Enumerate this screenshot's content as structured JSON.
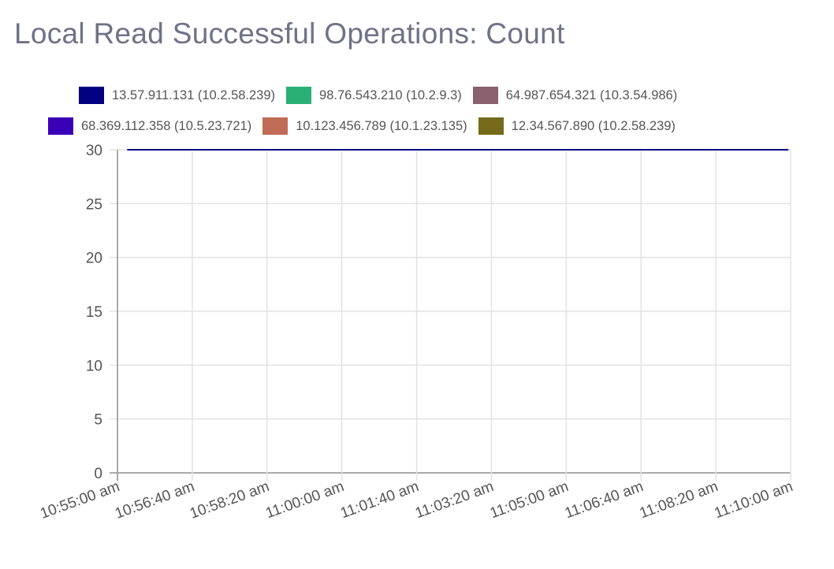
{
  "chart_data": {
    "type": "line",
    "title": "Local Read Successful Operations: Count",
    "xlabel": "",
    "ylabel": "",
    "ylim": [
      0,
      30
    ],
    "yticks": [
      "0",
      "5",
      "10",
      "15",
      "20",
      "25",
      "30"
    ],
    "xlim": [
      "10:55:00",
      "11:10:00"
    ],
    "xticks": [
      "10:55:00 am",
      "10:56:40 am",
      "10:58:20 am",
      "11:00:00 am",
      "11:01:40 am",
      "11:03:20 am",
      "11:05:00 am",
      "11:06:40 am",
      "11:08:20 am",
      "11:10:00 am"
    ],
    "grid": true,
    "legend_position": "top",
    "series": [
      {
        "name": "13.57.911.131 (10.2.58.239)",
        "color": "#000080",
        "points": [
          [
            "10:55:13",
            30
          ],
          [
            "11:09:57",
            30
          ]
        ]
      },
      {
        "name": "98.76.543.210 (10.2.9.3)",
        "color": "#2aaf74",
        "points": []
      },
      {
        "name": "64.987.654.321 (10.3.54.986)",
        "color": "#8a5f6e",
        "points": []
      },
      {
        "name": "68.369.112.358 (10.5.23.721)",
        "color": "#3a00b8",
        "points": []
      },
      {
        "name": "10.123.456.789 (10.1.23.135)",
        "color": "#c06b56",
        "points": []
      },
      {
        "name": "12.34.567.890 (10.2.58.239)",
        "color": "#756a1a",
        "points": []
      }
    ]
  }
}
